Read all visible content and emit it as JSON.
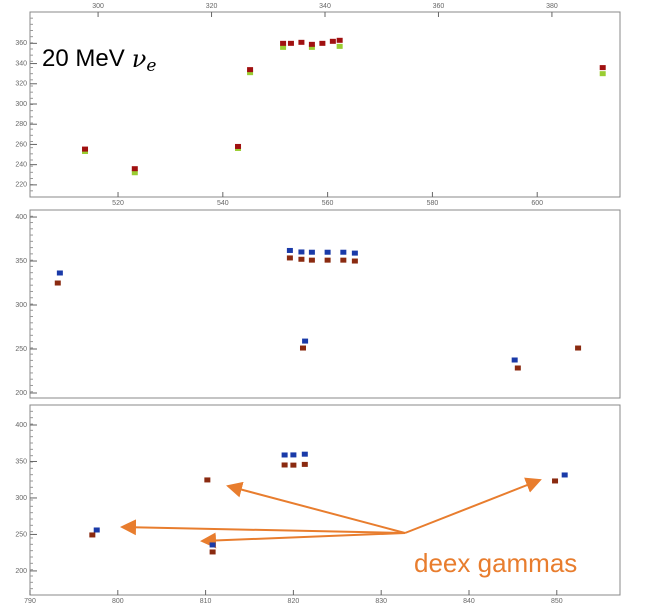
{
  "chart_data": [
    {
      "type": "scatter",
      "xlim": [
        503.2,
        615.8
      ],
      "xticks": [
        520,
        540,
        560,
        580,
        600
      ],
      "x2lim": [
        288,
        392
      ],
      "x2ticks": [
        300,
        320,
        340,
        360,
        380
      ],
      "ylim": [
        208,
        391
      ],
      "yticks": [
        220,
        240,
        260,
        280,
        300,
        320,
        340,
        360
      ],
      "series": [
        {
          "color": "#9acd32",
          "x": [
            513.7,
            523.2,
            542.9,
            545.2,
            551.5,
            557,
            562.3,
            612.5
          ],
          "values": [
            253,
            232,
            256,
            331,
            356,
            356,
            357,
            330
          ]
        },
        {
          "color": "#a01010",
          "x": [
            513.7,
            523.2,
            542.9,
            545.2,
            551.5,
            553,
            555,
            557,
            559,
            561,
            562.3,
            612.5
          ],
          "values": [
            255.4,
            236,
            258,
            334,
            360,
            360,
            361,
            359,
            360,
            362,
            363,
            336
          ]
        }
      ],
      "annotation": {
        "text": "20 MeV",
        "symbol": "ν",
        "subscript": "e"
      }
    },
    {
      "type": "scatter",
      "xlim": [
        503.2,
        615.8
      ],
      "ylim": [
        194.3,
        408
      ],
      "yticks": [
        200,
        250,
        300,
        350,
        400
      ],
      "series": [
        {
          "color": "#1a3aa8",
          "x": [
            508.9,
            552.8,
            555,
            557,
            560,
            563,
            565.2,
            555.7,
            595.7
          ],
          "values": [
            336.4,
            362,
            360.3,
            360,
            360,
            360,
            359,
            259,
            237.5
          ]
        },
        {
          "color": "#8a2a10",
          "x": [
            508.5,
            552.8,
            555,
            557,
            560,
            563,
            565.2,
            555.3,
            596.3,
            607.8
          ],
          "values": [
            325,
            353.5,
            352,
            351,
            351,
            351,
            350,
            251.1,
            228.4,
            251.1
          ]
        }
      ]
    },
    {
      "type": "scatter",
      "xlim": [
        790,
        857.2
      ],
      "xticks": [
        790,
        800,
        810,
        820,
        830,
        840,
        850
      ],
      "ylim": [
        167,
        427.4
      ],
      "yticks": [
        200,
        250,
        300,
        350,
        400
      ],
      "series": [
        {
          "color": "#1a3aa8",
          "x": [
            797.6,
            810.8,
            819,
            820,
            821.3,
            850.9
          ],
          "values": [
            256.1,
            235.6,
            358.9,
            359,
            360,
            331.5
          ]
        },
        {
          "color": "#8a2a10",
          "x": [
            797.1,
            810.8,
            810.2,
            819,
            820,
            821.3,
            849.8
          ],
          "values": [
            249.3,
            226,
            324.7,
            345.2,
            345,
            346,
            323.3
          ]
        }
      ],
      "annotation": {
        "text": "deex gammas"
      }
    }
  ]
}
